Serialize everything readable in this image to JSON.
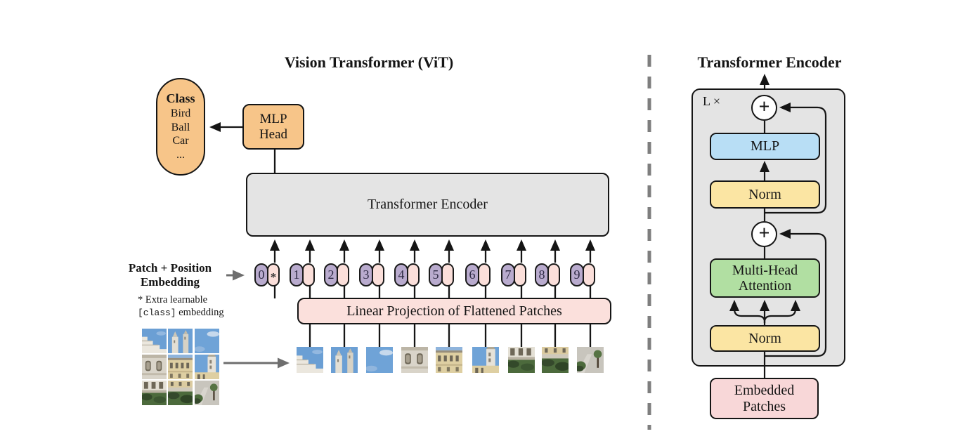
{
  "left_panel": {
    "title": "Vision Transformer (ViT)",
    "class_pill": {
      "header": "Class",
      "items": [
        "Bird",
        "Ball",
        "Car",
        "..."
      ]
    },
    "mlp_head": {
      "line1": "MLP",
      "line2": "Head"
    },
    "encoder_box_label": "Transformer Encoder",
    "patch_position_label": {
      "line1": "Patch + Position",
      "line2": "Embedding"
    },
    "footnote": {
      "star_text": "* Extra learnable",
      "code_token": "[class]",
      "suffix": " embedding"
    },
    "linear_projection_label": "Linear Projection of Flattened Patches",
    "tokens": [
      {
        "label": "0",
        "partner": "*"
      },
      {
        "label": "1",
        "partner": ""
      },
      {
        "label": "2",
        "partner": ""
      },
      {
        "label": "3",
        "partner": ""
      },
      {
        "label": "4",
        "partner": ""
      },
      {
        "label": "5",
        "partner": ""
      },
      {
        "label": "6",
        "partner": ""
      },
      {
        "label": "7",
        "partner": ""
      },
      {
        "label": "8",
        "partner": ""
      },
      {
        "label": "9",
        "partner": ""
      }
    ],
    "patch_row": [
      "sky-building",
      "sky-towers",
      "sky-cloud",
      "facade-white",
      "facade-yellow",
      "facade-tower",
      "hedge-building",
      "garden-hedge",
      "path-tree"
    ],
    "patch_grid": [
      "sky-building",
      "sky-towers",
      "sky-cloud",
      "facade-white",
      "facade-yellow",
      "facade-tower",
      "hedge-building",
      "garden-hedge",
      "path-tree"
    ]
  },
  "right_panel": {
    "title": "Transformer Encoder",
    "loop_label": "L ×",
    "plus_symbol": "+",
    "mlp_label": "MLP",
    "norm_top_label": "Norm",
    "attention_label": {
      "line1": "Multi-Head",
      "line2": "Attention"
    },
    "norm_bottom_label": "Norm",
    "embedded_patches": {
      "line1": "Embedded",
      "line2": "Patches"
    }
  },
  "colors": {
    "orange": "#F7C589",
    "panel-gray": "#E4E4E4",
    "token-purple": "#B9ABCE",
    "token-pink": "#FBDFDA",
    "pink-box": "#FBE0DC",
    "embedded-pink": "#F8D7D8",
    "mlp-blue": "#B8DEF5",
    "norm-yellow": "#FBE5A3",
    "attention-green": "#B1DFA2",
    "line-dark": "#151515",
    "divider-gray": "#7E7E7E"
  }
}
